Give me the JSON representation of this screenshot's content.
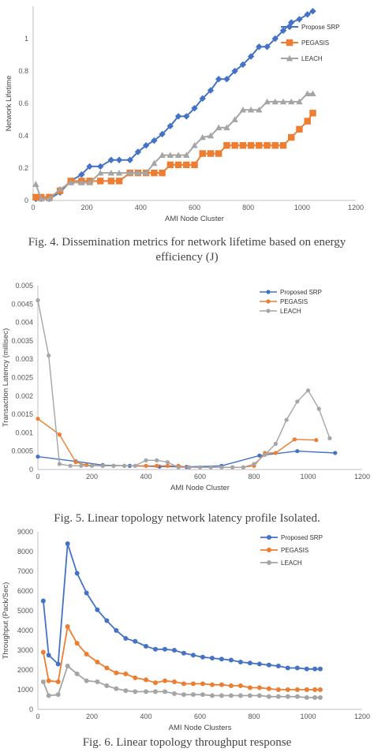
{
  "colors": {
    "blue": "#4472c4",
    "orange": "#ed7d31",
    "gray": "#a5a5a5",
    "axis": "#bfbfbf"
  },
  "captions": {
    "fig4_line1": "Fig. 4. Dissemination metrics for network lifetime based on energy",
    "fig4_line2": "efficiency (J)",
    "fig5": "Fig. 5. Linear topology network latency profile Isolated.",
    "fig6": "Fig. 6. Linear topology throughput response"
  },
  "chart_data": [
    {
      "type": "line",
      "ylabel": "Network Lifetime",
      "xlabel": "AMI Node Cluster",
      "xlim": [
        0,
        1200
      ],
      "ylim": [
        0,
        1.2
      ],
      "xticks": [
        "0",
        "200",
        "400",
        "600",
        "800",
        "1000",
        "1200"
      ],
      "yticks": [
        "0",
        "0.2",
        "0.4",
        "0.6",
        "0.8",
        "1"
      ],
      "grid": false,
      "legend_position": "top-right",
      "series": [
        {
          "name": "Propose SRP",
          "color": "blue",
          "marker": "diamond",
          "x": [
            10,
            30,
            60,
            100,
            140,
            180,
            210,
            250,
            290,
            320,
            360,
            390,
            420,
            450,
            480,
            510,
            540,
            570,
            600,
            630,
            660,
            690,
            720,
            750,
            780,
            810,
            840,
            870,
            900,
            930,
            960,
            990,
            1020,
            1040
          ],
          "y": [
            0.01,
            0.01,
            0.01,
            0.05,
            0.12,
            0.16,
            0.21,
            0.21,
            0.25,
            0.25,
            0.25,
            0.3,
            0.34,
            0.37,
            0.41,
            0.46,
            0.52,
            0.52,
            0.57,
            0.63,
            0.68,
            0.75,
            0.75,
            0.8,
            0.84,
            0.89,
            0.95,
            0.95,
            1.0,
            1.05,
            1.1,
            1.12,
            1.15,
            1.17
          ]
        },
        {
          "name": "PEGASIS",
          "color": "orange",
          "marker": "square",
          "x": [
            10,
            30,
            60,
            100,
            140,
            180,
            210,
            250,
            290,
            320,
            360,
            390,
            420,
            450,
            480,
            510,
            540,
            570,
            600,
            630,
            660,
            690,
            720,
            750,
            780,
            810,
            840,
            870,
            900,
            930,
            960,
            990,
            1020,
            1040
          ],
          "y": [
            0.02,
            0.02,
            0.02,
            0.06,
            0.12,
            0.12,
            0.12,
            0.12,
            0.12,
            0.12,
            0.17,
            0.17,
            0.17,
            0.17,
            0.17,
            0.22,
            0.22,
            0.22,
            0.22,
            0.29,
            0.29,
            0.29,
            0.34,
            0.34,
            0.34,
            0.34,
            0.34,
            0.34,
            0.34,
            0.34,
            0.39,
            0.44,
            0.49,
            0.54
          ]
        },
        {
          "name": "LEACH",
          "color": "gray",
          "marker": "triangle",
          "x": [
            10,
            30,
            60,
            100,
            140,
            180,
            210,
            250,
            290,
            320,
            360,
            390,
            420,
            450,
            480,
            510,
            540,
            570,
            600,
            630,
            660,
            690,
            720,
            750,
            780,
            810,
            840,
            870,
            900,
            930,
            960,
            990,
            1020,
            1040
          ],
          "y": [
            0.1,
            0.01,
            0.01,
            0.07,
            0.11,
            0.11,
            0.11,
            0.17,
            0.17,
            0.17,
            0.17,
            0.17,
            0.17,
            0.23,
            0.28,
            0.28,
            0.28,
            0.28,
            0.34,
            0.39,
            0.4,
            0.45,
            0.45,
            0.5,
            0.56,
            0.56,
            0.56,
            0.61,
            0.61,
            0.61,
            0.61,
            0.61,
            0.66,
            0.66
          ]
        }
      ]
    },
    {
      "type": "line",
      "ylabel": "Transaction Latency (millisec)",
      "xlabel": "AMI Node Cluster",
      "xlim": [
        0,
        1200
      ],
      "ylim": [
        0,
        0.005
      ],
      "xticks": [
        "0",
        "200",
        "400",
        "600",
        "800",
        "1000",
        "1200"
      ],
      "yticks": [
        "0",
        "0.0005",
        "0.001",
        "0.0015",
        "0.002",
        "0.0025",
        "0.003",
        "0.0035",
        "0.004",
        "0.0045",
        "0.005"
      ],
      "grid": false,
      "legend_position": "top-right",
      "series": [
        {
          "name": "Proposed SRP",
          "color": "blue",
          "marker": "circle",
          "x": [
            0,
            140,
            240,
            340,
            450,
            550,
            680,
            820,
            960,
            1100
          ],
          "y": [
            0.00035,
            0.00022,
            0.00012,
            0.0001,
            8e-05,
            7e-05,
            0.0001,
            0.00038,
            0.0005,
            0.00045
          ]
        },
        {
          "name": "PEGASIS",
          "color": "orange",
          "marker": "circle",
          "x": [
            0,
            80,
            140,
            180,
            240,
            280,
            320,
            400,
            440,
            480,
            520,
            560,
            600,
            640,
            680,
            720,
            760,
            800,
            840,
            880,
            950,
            1030
          ],
          "y": [
            0.00138,
            0.00095,
            0.0002,
            0.00012,
            0.0001,
            0.0001,
            0.0001,
            0.0001,
            0.0001,
            0.0001,
            0.0001,
            6e-05,
            6e-05,
            6e-05,
            6e-05,
            6e-05,
            6e-05,
            0.0001,
            0.00045,
            0.00045,
            0.00082,
            0.0008
          ]
        },
        {
          "name": "LEACH",
          "color": "gray",
          "marker": "circle",
          "x": [
            0,
            40,
            80,
            120,
            160,
            200,
            240,
            280,
            320,
            360,
            400,
            440,
            480,
            520,
            560,
            600,
            640,
            680,
            720,
            760,
            800,
            840,
            880,
            920,
            960,
            1000,
            1040,
            1080
          ],
          "y": [
            0.0046,
            0.0031,
            0.00015,
            0.0001,
            0.0001,
            0.0001,
            0.0001,
            0.0001,
            0.0001,
            0.0001,
            0.00025,
            0.00025,
            0.0002,
            6e-05,
            6e-05,
            6e-05,
            6e-05,
            6e-05,
            6e-05,
            6e-05,
            0.00015,
            0.0004,
            0.0007,
            0.00135,
            0.00185,
            0.00215,
            0.00165,
            0.00085
          ]
        }
      ]
    },
    {
      "type": "line",
      "ylabel": "Throughput (Pack/Sec)",
      "xlabel": "AMI Node Clusters",
      "xlim": [
        0,
        1200
      ],
      "ylim": [
        0,
        9000
      ],
      "xticks": [
        "0",
        "200",
        "400",
        "600",
        "800",
        "1000",
        "1200"
      ],
      "yticks": [
        "0",
        "1000",
        "2000",
        "3000",
        "4000",
        "5000",
        "6000",
        "7000",
        "8000",
        "9000"
      ],
      "grid": false,
      "legend_position": "top-right",
      "series": [
        {
          "name": "Proposed SRP",
          "color": "blue",
          "marker": "circle",
          "x": [
            20,
            40,
            75,
            110,
            145,
            180,
            220,
            255,
            290,
            325,
            360,
            400,
            435,
            470,
            505,
            540,
            575,
            610,
            645,
            680,
            715,
            750,
            785,
            820,
            855,
            890,
            925,
            960,
            995,
            1025,
            1045
          ],
          "y": [
            5500,
            2750,
            2300,
            8400,
            6900,
            5900,
            5050,
            4500,
            4000,
            3600,
            3450,
            3200,
            3050,
            3050,
            3000,
            2850,
            2750,
            2650,
            2600,
            2550,
            2500,
            2400,
            2350,
            2300,
            2250,
            2200,
            2100,
            2100,
            2050,
            2050,
            2050
          ]
        },
        {
          "name": "PEGASIS",
          "color": "orange",
          "marker": "circle",
          "x": [
            20,
            40,
            75,
            110,
            145,
            180,
            220,
            255,
            290,
            325,
            360,
            400,
            435,
            470,
            505,
            540,
            575,
            610,
            645,
            680,
            715,
            750,
            785,
            820,
            855,
            890,
            925,
            960,
            995,
            1025,
            1045
          ],
          "y": [
            2900,
            1450,
            1400,
            4200,
            3350,
            2800,
            2400,
            2100,
            1850,
            1800,
            1600,
            1500,
            1350,
            1450,
            1400,
            1300,
            1300,
            1300,
            1250,
            1250,
            1200,
            1200,
            1100,
            1100,
            1050,
            1000,
            1000,
            1000,
            1000,
            1000,
            1000
          ]
        },
        {
          "name": "LEACH",
          "color": "gray",
          "marker": "circle",
          "x": [
            20,
            40,
            75,
            110,
            145,
            180,
            220,
            255,
            290,
            325,
            360,
            400,
            435,
            470,
            505,
            540,
            575,
            610,
            645,
            680,
            715,
            750,
            785,
            820,
            855,
            890,
            925,
            960,
            995,
            1025,
            1045
          ],
          "y": [
            1400,
            700,
            750,
            2200,
            1800,
            1450,
            1400,
            1200,
            1050,
            950,
            900,
            900,
            900,
            900,
            800,
            750,
            750,
            750,
            700,
            700,
            700,
            700,
            700,
            700,
            650,
            650,
            650,
            650,
            600,
            600,
            600
          ]
        }
      ]
    }
  ]
}
